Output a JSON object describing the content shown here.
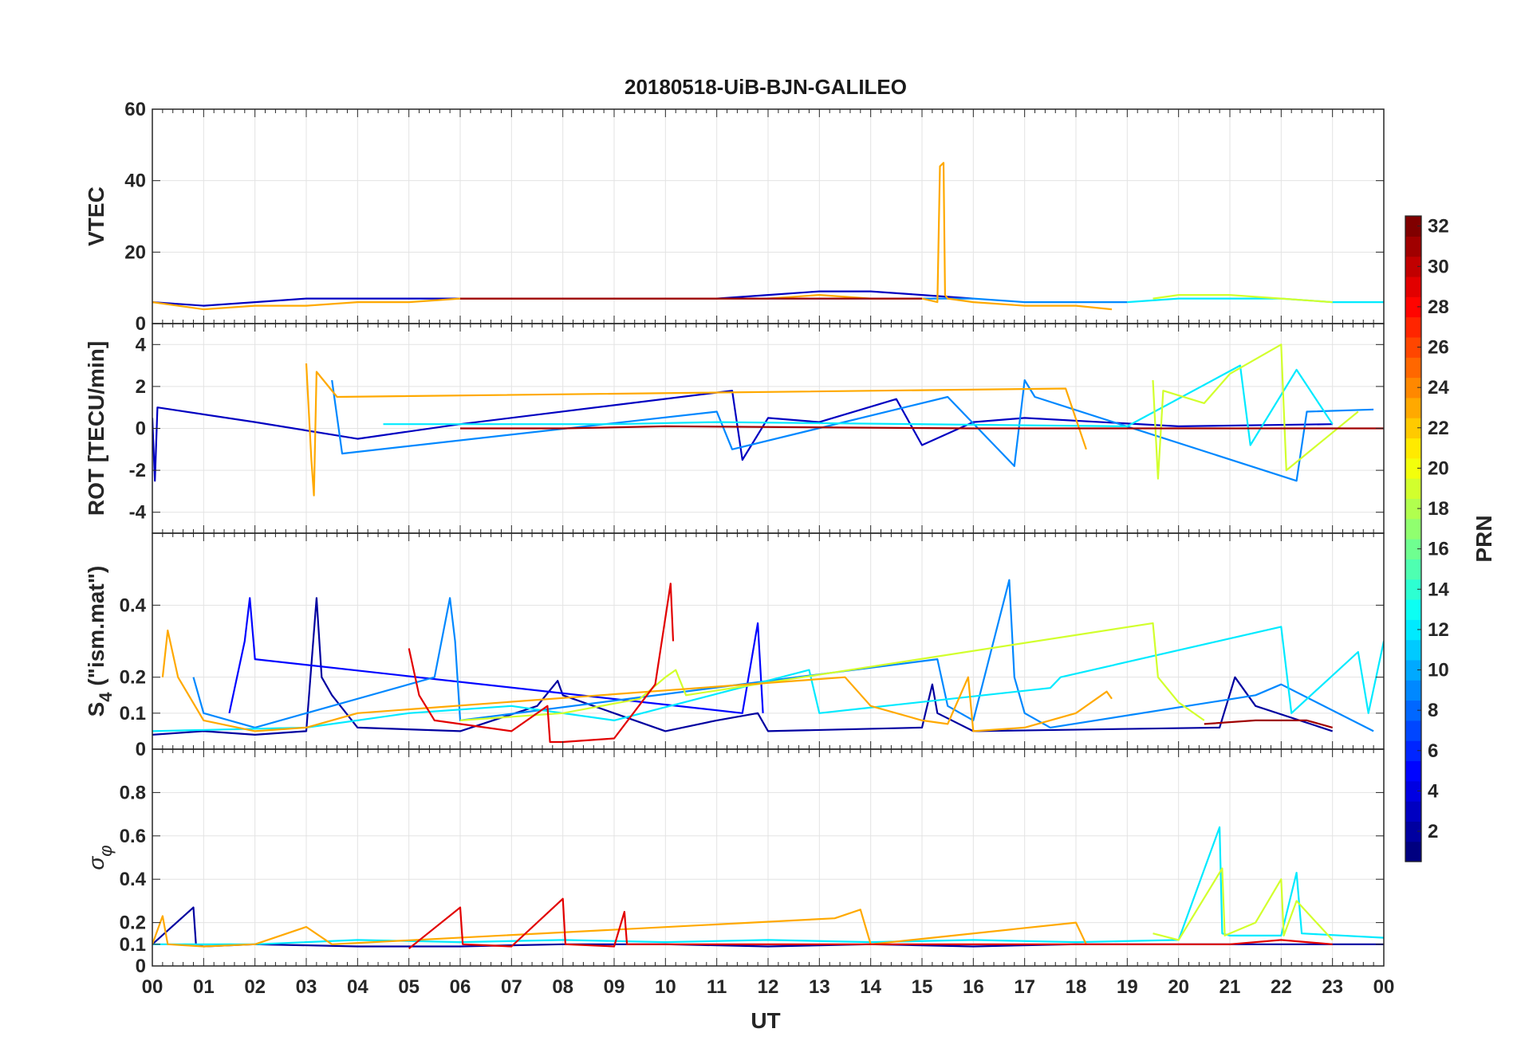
{
  "chart_data": {
    "type": "line",
    "title": "20180518-UiB-BJN-GALILEO",
    "xlabel": "UT",
    "xlim": [
      0,
      24
    ],
    "x_tick_labels": [
      "00",
      "01",
      "02",
      "03",
      "04",
      "05",
      "06",
      "07",
      "08",
      "09",
      "10",
      "11",
      "12",
      "13",
      "14",
      "15",
      "16",
      "17",
      "18",
      "19",
      "20",
      "21",
      "22",
      "23",
      "00"
    ],
    "grid": true,
    "colorbar": {
      "label": "PRN",
      "range": [
        1,
        32
      ],
      "tick_labels": [
        "2",
        "4",
        "6",
        "8",
        "10",
        "12",
        "14",
        "16",
        "18",
        "20",
        "22",
        "24",
        "26",
        "28",
        "30",
        "32"
      ],
      "colormap": "jet",
      "placement": "right"
    },
    "panels": [
      {
        "id": "vtec",
        "ylabel": "VTEC",
        "ylim": [
          0,
          60
        ],
        "y_ticks": [
          0,
          20,
          40,
          60
        ],
        "y_tick_labels": [
          "0",
          "20",
          "40",
          "60"
        ],
        "series": [
          {
            "prn": 3,
            "x": [
              0,
              1,
              2,
              3,
              4,
              5,
              6,
              7,
              8,
              9,
              10,
              11,
              12,
              13,
              14,
              15,
              16
            ],
            "y": [
              6,
              5,
              6,
              7,
              7,
              7,
              7,
              7,
              7,
              7,
              7,
              7,
              8,
              9,
              9,
              8,
              7
            ]
          },
          {
            "prn": 9,
            "x": [
              8,
              9,
              10,
              11,
              12,
              13,
              14,
              15,
              16,
              17,
              18,
              19
            ],
            "y": [
              7,
              7,
              7,
              7,
              7,
              7,
              7,
              7,
              7,
              6,
              6,
              6
            ]
          },
          {
            "prn": 12,
            "x": [
              19,
              20,
              21,
              22,
              23,
              24
            ],
            "y": [
              6,
              7,
              7,
              7,
              6,
              6
            ]
          },
          {
            "prn": 19,
            "x": [
              19.5,
              20,
              21,
              22,
              23
            ],
            "y": [
              7,
              8,
              8,
              7,
              6
            ]
          },
          {
            "prn": 23,
            "x": [
              0,
              1,
              2,
              3,
              4,
              5,
              6,
              7,
              8,
              9,
              10,
              11,
              12,
              13,
              14,
              15,
              15.3,
              15.35,
              15.42,
              15.45,
              15.5,
              16,
              17,
              18,
              18.7
            ],
            "y": [
              6,
              4,
              5,
              5,
              6,
              6,
              7,
              7,
              7,
              7,
              7,
              7,
              7,
              8,
              7,
              7,
              6,
              44,
              45,
              8,
              7,
              6,
              5,
              5,
              4
            ]
          },
          {
            "prn": 31,
            "x": [
              6,
              7,
              8,
              9,
              10,
              11,
              12,
              13,
              14,
              15
            ],
            "y": [
              7,
              7,
              7,
              7,
              7,
              7,
              7,
              7,
              7,
              7
            ]
          }
        ]
      },
      {
        "id": "rot",
        "ylabel": "ROT [TECU/min]",
        "ylim": [
          -5,
          5
        ],
        "y_ticks": [
          -4,
          -2,
          0,
          2,
          4
        ],
        "y_tick_labels": [
          "-4",
          "-2",
          "0",
          "2",
          "4"
        ],
        "series": [
          {
            "prn": 3,
            "x": [
              0,
              0.05,
              0.1,
              2,
              4,
              6,
              11.3,
              11.5,
              12,
              13,
              14.5,
              15,
              16,
              17,
              20,
              23
            ],
            "y": [
              0.5,
              -2.5,
              1.0,
              0.3,
              -0.5,
              0.2,
              1.8,
              -1.5,
              0.5,
              0.3,
              1.4,
              -0.8,
              0.3,
              0.5,
              0.1,
              0.2
            ]
          },
          {
            "prn": 9,
            "x": [
              3.5,
              3.7,
              11,
              11.3,
              15.5,
              16.8,
              17,
              17.2,
              22.3,
              22.5,
              23.8
            ],
            "y": [
              2.3,
              -1.2,
              0.8,
              -1.0,
              1.5,
              -1.8,
              2.3,
              1.5,
              -2.5,
              0.8,
              0.9
            ]
          },
          {
            "prn": 12,
            "x": [
              4.5,
              6,
              9,
              11,
              19,
              21.2,
              21.4,
              22.3,
              23
            ],
            "y": [
              0.2,
              0.2,
              0.2,
              0.3,
              0.1,
              3.0,
              -0.8,
              2.8,
              0.2
            ]
          },
          {
            "prn": 19,
            "x": [
              19.5,
              19.6,
              19.7,
              20.5,
              21,
              22,
              22.1,
              23.5
            ],
            "y": [
              2.3,
              -2.4,
              1.8,
              1.2,
              2.6,
              4.0,
              -2.0,
              0.8
            ]
          },
          {
            "prn": 23,
            "x": [
              3.0,
              3.1,
              3.15,
              3.2,
              3.6,
              17.8,
              18.2
            ],
            "y": [
              3.1,
              -1.5,
              -3.2,
              2.7,
              1.5,
              1.9,
              -1.0
            ]
          },
          {
            "prn": 31,
            "x": [
              6,
              8,
              10,
              16,
              21,
              24
            ],
            "y": [
              0,
              0,
              0.1,
              0,
              0,
              0
            ]
          }
        ]
      },
      {
        "id": "s4",
        "ylabel": "S_4 (\"ism.mat\")",
        "ylabel_main": "S",
        "ylabel_sub": "4",
        "ylabel_rest": " (\"ism.mat\")",
        "ylim": [
          0,
          0.6
        ],
        "y_ticks": [
          0,
          0.1,
          0.2,
          0.4
        ],
        "y_tick_labels": [
          "0",
          "0.1",
          "0.2",
          "0.4"
        ],
        "series": [
          {
            "prn": 2,
            "x": [
              0,
              1,
              2,
              3,
              3.2,
              3.3,
              3.5,
              4,
              6,
              7.5,
              7.9,
              8,
              10,
              11,
              11.8,
              12,
              15,
              15.2,
              15.3,
              16,
              20.8,
              21.1,
              21.5,
              23
            ],
            "y": [
              0.04,
              0.05,
              0.04,
              0.05,
              0.42,
              0.2,
              0.15,
              0.06,
              0.05,
              0.12,
              0.19,
              0.15,
              0.05,
              0.08,
              0.1,
              0.05,
              0.06,
              0.18,
              0.1,
              0.05,
              0.06,
              0.2,
              0.12,
              0.05
            ]
          },
          {
            "prn": 5,
            "x": [
              1.5,
              1.8,
              1.9,
              2,
              11.5,
              11.8,
              11.9
            ],
            "y": [
              0.1,
              0.3,
              0.42,
              0.25,
              0.1,
              0.35,
              0.1
            ]
          },
          {
            "prn": 9,
            "x": [
              0.8,
              1,
              2,
              5.5,
              5.8,
              5.9,
              6,
              15.3,
              15.5,
              16,
              16.7,
              16.8,
              17,
              17.5,
              21.5,
              22,
              23.8
            ],
            "y": [
              0.2,
              0.1,
              0.06,
              0.2,
              0.42,
              0.3,
              0.08,
              0.25,
              0.12,
              0.08,
              0.47,
              0.2,
              0.1,
              0.06,
              0.15,
              0.18,
              0.05
            ]
          },
          {
            "prn": 12,
            "x": [
              0,
              3,
              5,
              7,
              9,
              12.8,
              13,
              17.5,
              17.7,
              22,
              22.2,
              23.5,
              23.7,
              24
            ],
            "y": [
              0.05,
              0.06,
              0.1,
              0.12,
              0.08,
              0.22,
              0.1,
              0.17,
              0.2,
              0.34,
              0.1,
              0.27,
              0.1,
              0.3
            ]
          },
          {
            "prn": 19,
            "x": [
              6,
              8,
              9.5,
              10,
              10.2,
              10.4,
              19.5,
              19.6,
              20,
              20.5
            ],
            "y": [
              0.08,
              0.1,
              0.14,
              0.2,
              0.22,
              0.15,
              0.35,
              0.2,
              0.13,
              0.08
            ]
          },
          {
            "prn": 23,
            "x": [
              0.2,
              0.3,
              0.5,
              1,
              2,
              3,
              4,
              13.5,
              14,
              15,
              15.5,
              15.9,
              16,
              17,
              18,
              18.6,
              18.7
            ],
            "y": [
              0.2,
              0.33,
              0.2,
              0.08,
              0.05,
              0.06,
              0.1,
              0.2,
              0.12,
              0.08,
              0.07,
              0.2,
              0.05,
              0.06,
              0.1,
              0.16,
              0.14
            ]
          },
          {
            "prn": 29,
            "x": [
              5,
              5.2,
              5.5,
              7,
              7.7,
              7.75,
              8,
              9,
              9.8,
              10.1,
              10.15
            ],
            "y": [
              0.28,
              0.15,
              0.08,
              0.05,
              0.12,
              0.02,
              0.02,
              0.03,
              0.18,
              0.46,
              0.3
            ]
          },
          {
            "prn": 31,
            "x": [
              20.5,
              21.5,
              22.5,
              23
            ],
            "y": [
              0.07,
              0.08,
              0.08,
              0.06
            ]
          }
        ]
      },
      {
        "id": "sigma_phi",
        "ylabel": "σ_φ",
        "ylabel_main": "σ",
        "ylabel_sub": "φ",
        "ylim": [
          0,
          1
        ],
        "y_ticks": [
          0,
          0.1,
          0.2,
          0.4,
          0.6,
          0.8
        ],
        "y_tick_labels": [
          "0",
          "0.1",
          "0.2",
          "0.4",
          "0.6",
          "0.8"
        ],
        "series": [
          {
            "prn": 2,
            "x": [
              0,
              0.8,
              0.85,
              1,
              2,
              4,
              6,
              8,
              10,
              12,
              14,
              16,
              18,
              20,
              22,
              24
            ],
            "y": [
              0.1,
              0.27,
              0.1,
              0.09,
              0.1,
              0.09,
              0.09,
              0.1,
              0.1,
              0.09,
              0.1,
              0.09,
              0.1,
              0.1,
              0.1,
              0.1
            ]
          },
          {
            "prn": 12,
            "x": [
              0,
              2,
              4,
              6,
              8,
              10,
              12,
              14,
              16,
              18,
              20,
              20.8,
              20.85,
              21,
              22,
              22.3,
              22.4,
              24
            ],
            "y": [
              0.1,
              0.1,
              0.12,
              0.11,
              0.12,
              0.11,
              0.12,
              0.11,
              0.12,
              0.11,
              0.12,
              0.64,
              0.15,
              0.14,
              0.14,
              0.43,
              0.15,
              0.13
            ]
          },
          {
            "prn": 19,
            "x": [
              19.5,
              20,
              20.85,
              20.9,
              21.5,
              22,
              22.05,
              22.3,
              23
            ],
            "y": [
              0.15,
              0.12,
              0.45,
              0.14,
              0.2,
              0.4,
              0.14,
              0.3,
              0.12
            ]
          },
          {
            "prn": 23,
            "x": [
              0,
              0.2,
              0.3,
              1,
              2,
              3,
              3.5,
              13.3,
              13.8,
              14,
              18,
              18.2
            ],
            "y": [
              0.1,
              0.23,
              0.1,
              0.09,
              0.1,
              0.18,
              0.1,
              0.22,
              0.26,
              0.1,
              0.2,
              0.1
            ]
          },
          {
            "prn": 29,
            "x": [
              5,
              6,
              6.05,
              7,
              8,
              8.05,
              9,
              9.2,
              9.25,
              10,
              21,
              22,
              23
            ],
            "y": [
              0.08,
              0.27,
              0.1,
              0.09,
              0.31,
              0.1,
              0.09,
              0.25,
              0.1,
              0.1,
              0.1,
              0.12,
              0.1
            ]
          }
        ]
      }
    ]
  }
}
